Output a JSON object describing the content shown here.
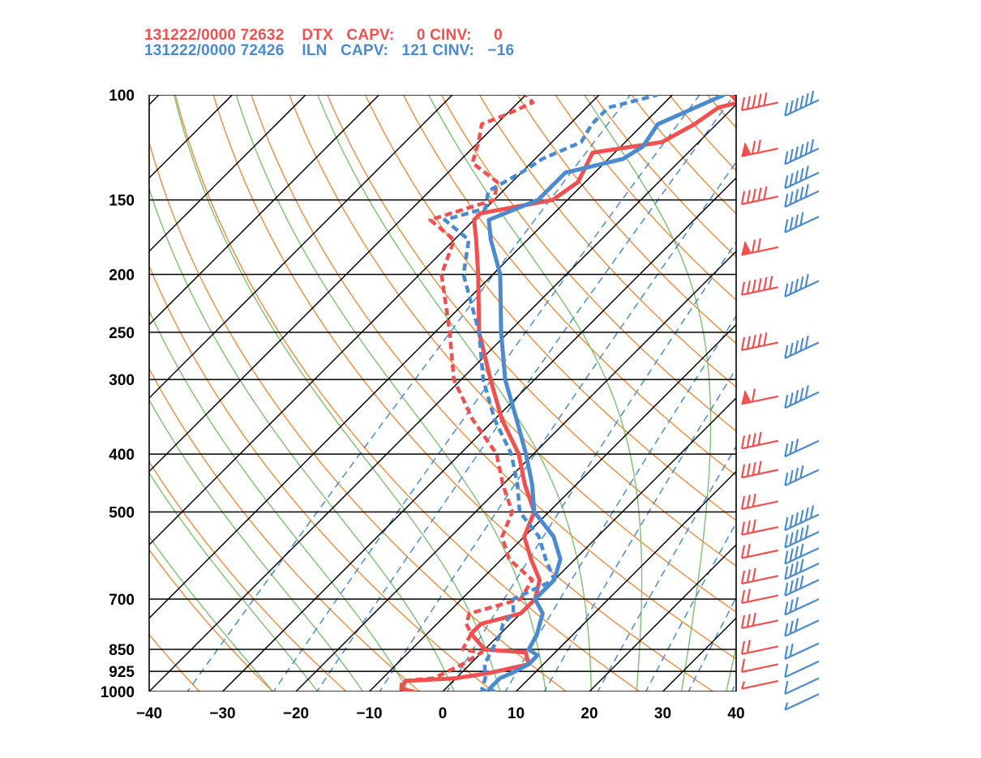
{
  "header": {
    "line1": "131222/0000 72632    DTX   CAPV:     0 CINV:     0",
    "line2": "131222/0000 72426    ILN   CAPV:   121 CINV:   −16"
  },
  "colors": {
    "dtx": "#f05050",
    "iln": "#4a8bd0",
    "dry_adiabat": "#f08a3c",
    "moist_adiabat": "#7cc070",
    "mixing_ratio": "#4a8bd0",
    "isotherm": "#000000",
    "isobar": "#000000"
  },
  "chart_data": {
    "type": "line",
    "chart_kind": "skew-T log-p sounding",
    "x_axis": {
      "quantity": "temperature",
      "range": [
        -40,
        40
      ],
      "ticks": [
        "−40",
        "−30",
        "−20",
        "−10",
        "0",
        "10",
        "20",
        "30",
        "40"
      ],
      "tick_values": [
        -40,
        -30,
        -20,
        -10,
        0,
        10,
        20,
        30,
        40
      ]
    },
    "y_axis": {
      "quantity": "pressure",
      "scale": "log",
      "range": [
        1000,
        100
      ],
      "ticks": [
        "100",
        "150",
        "200",
        "250",
        "300",
        "400",
        "500",
        "700",
        "850",
        "925",
        "1000"
      ],
      "tick_values": [
        100,
        150,
        200,
        250,
        300,
        400,
        500,
        700,
        850,
        925,
        1000
      ]
    },
    "series": [
      {
        "name": "DTX",
        "color": "#f05050",
        "temperature": [
          [
            1000,
            -4
          ],
          [
            990,
            -6
          ],
          [
            960,
            -6.5
          ],
          [
            950,
            0
          ],
          [
            930,
            4
          ],
          [
            900,
            8
          ],
          [
            860,
            6
          ],
          [
            850,
            0
          ],
          [
            800,
            -4
          ],
          [
            770,
            -4
          ],
          [
            740,
            0
          ],
          [
            700,
            0
          ],
          [
            650,
            -2
          ],
          [
            600,
            -6
          ],
          [
            550,
            -10
          ],
          [
            500,
            -12
          ],
          [
            450,
            -17
          ],
          [
            400,
            -22
          ],
          [
            350,
            -29
          ],
          [
            300,
            -36
          ],
          [
            250,
            -44
          ],
          [
            200,
            -52
          ],
          [
            175,
            -57
          ],
          [
            162,
            -60
          ],
          [
            158,
            -60
          ],
          [
            150,
            -52
          ],
          [
            140,
            -51
          ],
          [
            125,
            -53
          ],
          [
            120,
            -45
          ],
          [
            112,
            -43
          ],
          [
            105,
            -42
          ],
          [
            103,
            -40
          ],
          [
            100,
            -42
          ]
        ],
        "dewpoint": [
          [
            1000,
            -4
          ],
          [
            990,
            -6
          ],
          [
            960,
            -7
          ],
          [
            950,
            -3
          ],
          [
            900,
            -1
          ],
          [
            860,
            0
          ],
          [
            850,
            -3
          ],
          [
            800,
            -4
          ],
          [
            770,
            -6
          ],
          [
            740,
            -7
          ],
          [
            700,
            -2
          ],
          [
            650,
            -3
          ],
          [
            600,
            -9
          ],
          [
            550,
            -13
          ],
          [
            500,
            -15
          ],
          [
            450,
            -20
          ],
          [
            400,
            -25
          ],
          [
            350,
            -33
          ],
          [
            300,
            -41
          ],
          [
            250,
            -48
          ],
          [
            200,
            -57
          ],
          [
            175,
            -60
          ],
          [
            162,
            -66
          ],
          [
            150,
            -60
          ],
          [
            140,
            -62
          ],
          [
            130,
            -68
          ],
          [
            120,
            -70
          ],
          [
            112,
            -72
          ],
          [
            108,
            -70
          ],
          [
            103,
            -68
          ],
          [
            100,
            -70
          ]
        ],
        "wind_barbs": [
          {
            "p": 103,
            "barbs": "ccccc"
          },
          {
            "p": 123,
            "barbs": "pcc"
          },
          {
            "p": 148,
            "barbs": "ccccc"
          },
          {
            "p": 180,
            "barbs": "pcc"
          },
          {
            "p": 210,
            "barbs": "cccccc"
          },
          {
            "p": 260,
            "barbs": "ccccc"
          },
          {
            "p": 320,
            "barbs": "pc"
          },
          {
            "p": 380,
            "barbs": "cccc"
          },
          {
            "p": 425,
            "barbs": "cccc"
          },
          {
            "p": 480,
            "barbs": "ccc"
          },
          {
            "p": 530,
            "barbs": "ccc"
          },
          {
            "p": 580,
            "barbs": "cc"
          },
          {
            "p": 640,
            "barbs": "ccc"
          },
          {
            "p": 690,
            "barbs": "cc"
          },
          {
            "p": 760,
            "barbs": "ccc"
          },
          {
            "p": 840,
            "barbs": "cc"
          },
          {
            "p": 900,
            "barbs": "c"
          },
          {
            "p": 960,
            "barbs": "h"
          }
        ]
      },
      {
        "name": "ILN",
        "color": "#4a8bd0",
        "temperature": [
          [
            1000,
            7
          ],
          [
            990,
            6
          ],
          [
            950,
            6
          ],
          [
            930,
            7
          ],
          [
            900,
            8
          ],
          [
            870,
            8
          ],
          [
            850,
            6
          ],
          [
            800,
            5
          ],
          [
            770,
            4
          ],
          [
            740,
            3
          ],
          [
            700,
            0
          ],
          [
            650,
            0
          ],
          [
            600,
            -2
          ],
          [
            550,
            -6
          ],
          [
            500,
            -12
          ],
          [
            450,
            -16
          ],
          [
            400,
            -21
          ],
          [
            350,
            -27
          ],
          [
            300,
            -34
          ],
          [
            250,
            -41
          ],
          [
            200,
            -49
          ],
          [
            175,
            -55
          ],
          [
            162,
            -58
          ],
          [
            150,
            -54
          ],
          [
            145,
            -54
          ],
          [
            135,
            -54
          ],
          [
            128,
            -48
          ],
          [
            122,
            -47
          ],
          [
            112,
            -48
          ],
          [
            100,
            -43
          ]
        ],
        "dewpoint": [
          [
            1000,
            6
          ],
          [
            990,
            5
          ],
          [
            950,
            4
          ],
          [
            900,
            2
          ],
          [
            850,
            1
          ],
          [
            800,
            0
          ],
          [
            770,
            -1
          ],
          [
            740,
            -1
          ],
          [
            700,
            -3
          ],
          [
            650,
            0
          ],
          [
            600,
            -4
          ],
          [
            550,
            -8
          ],
          [
            500,
            -14
          ],
          [
            450,
            -18
          ],
          [
            400,
            -23
          ],
          [
            350,
            -30
          ],
          [
            300,
            -37
          ],
          [
            250,
            -44
          ],
          [
            200,
            -54
          ],
          [
            175,
            -58
          ],
          [
            162,
            -64
          ],
          [
            155,
            -60
          ],
          [
            145,
            -62
          ],
          [
            135,
            -60
          ],
          [
            128,
            -59
          ],
          [
            120,
            -56
          ],
          [
            112,
            -57
          ],
          [
            105,
            -57
          ],
          [
            100,
            -52
          ]
        ],
        "wind_barbs": [
          {
            "p": 102,
            "barbs": "cccccc"
          },
          {
            "p": 123,
            "barbs": "cccccc"
          },
          {
            "p": 135,
            "barbs": "ccccc"
          },
          {
            "p": 145,
            "barbs": "ccccc"
          },
          {
            "p": 160,
            "barbs": "cccc"
          },
          {
            "p": 205,
            "barbs": "ccccc"
          },
          {
            "p": 260,
            "barbs": "ccccc"
          },
          {
            "p": 315,
            "barbs": "ccccc"
          },
          {
            "p": 380,
            "barbs": "ccc"
          },
          {
            "p": 425,
            "barbs": "cccc"
          },
          {
            "p": 505,
            "barbs": "cccccc"
          },
          {
            "p": 540,
            "barbs": "ccccc"
          },
          {
            "p": 575,
            "barbs": "cccc"
          },
          {
            "p": 610,
            "barbs": "cccc"
          },
          {
            "p": 650,
            "barbs": "cccc"
          },
          {
            "p": 700,
            "barbs": "ccc"
          },
          {
            "p": 760,
            "barbs": "ccc"
          },
          {
            "p": 830,
            "barbs": "cc"
          },
          {
            "p": 890,
            "barbs": "c"
          },
          {
            "p": 950,
            "barbs": "c"
          },
          {
            "p": 1010,
            "barbs": "h"
          }
        ]
      }
    ]
  }
}
